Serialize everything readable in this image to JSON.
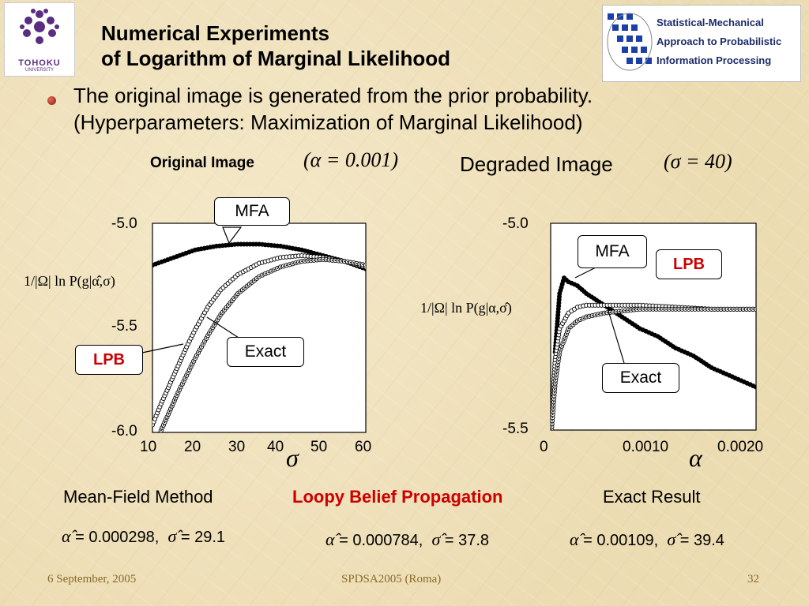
{
  "logos": {
    "left_text": "TOHOKU",
    "left_subtext": "UNIVERSITY",
    "right_lines": [
      "Statistical-Mechanical",
      "Approach to Probabilistic",
      "Information Processing"
    ]
  },
  "title": {
    "line1": "Numerical Experiments",
    "line2": "of Logarithm of Marginal Likelihood"
  },
  "bullet": {
    "line1": "The original image is generated from the prior probability.",
    "line2": "(Hyperparameters: Maximization of Marginal Likelihood)"
  },
  "labels": {
    "original": "Original Image",
    "original_math": "(α = 0.001)",
    "degraded": "Degraded Image",
    "degraded_math": "(σ = 40)"
  },
  "colors": {
    "highlight": "#cc0000",
    "curve": "#000000"
  },
  "chart_data": [
    {
      "type": "scatter",
      "x_symbol": "σ",
      "ylabel": "1/|Ω| ln P(g|α̂,σ)",
      "xlim": [
        10,
        60
      ],
      "ylim": [
        -6.0,
        -4.9
      ],
      "x_tick_labels": [
        "10",
        "20",
        "30",
        "40",
        "50",
        "60"
      ],
      "y_tick_labels": [
        "-5.0",
        "-5.5",
        "-6.0"
      ],
      "callouts": {
        "mfa": "MFA",
        "exact": "Exact",
        "lpb": "LPB"
      },
      "series": [
        {
          "name": "MFA",
          "marker": "filled",
          "x": [
            10,
            15,
            20,
            25,
            30,
            35,
            40,
            45,
            50,
            55,
            60
          ],
          "y": [
            -5.12,
            -5.08,
            -5.04,
            -5.02,
            -5.01,
            -5.01,
            -5.02,
            -5.04,
            -5.07,
            -5.1,
            -5.14
          ]
        },
        {
          "name": "LPB",
          "marker": "open",
          "x": [
            10,
            12,
            14,
            16,
            18,
            20,
            23,
            26,
            30,
            35,
            40,
            45,
            50,
            55,
            60
          ],
          "y": [
            -5.96,
            -5.85,
            -5.75,
            -5.65,
            -5.55,
            -5.46,
            -5.34,
            -5.25,
            -5.17,
            -5.11,
            -5.08,
            -5.07,
            -5.08,
            -5.1,
            -5.13
          ]
        },
        {
          "name": "Exact",
          "marker": "dotted",
          "x": [
            10,
            12,
            14,
            16,
            18,
            20,
            23,
            26,
            30,
            35,
            40,
            45,
            50,
            55,
            60
          ],
          "y": [
            -6.1,
            -5.99,
            -5.89,
            -5.79,
            -5.7,
            -5.61,
            -5.49,
            -5.38,
            -5.27,
            -5.18,
            -5.13,
            -5.1,
            -5.09,
            -5.1,
            -5.12
          ]
        }
      ]
    },
    {
      "type": "scatter",
      "x_symbol": "α",
      "ylabel": "1/|Ω| ln P(g|α,σ̂)",
      "xlim": [
        0,
        0.0023
      ],
      "ylim": [
        -5.5,
        -4.97
      ],
      "x_tick_labels": [
        "0",
        "0.0010",
        "0.0020"
      ],
      "y_tick_labels": [
        "-5.0",
        "-5.5"
      ],
      "callouts": {
        "mfa": "MFA",
        "exact": "Exact",
        "lpb": "LPB"
      },
      "series": [
        {
          "name": "MFA",
          "marker": "filled",
          "x": [
            5e-05,
            0.0001,
            0.00015,
            0.0002,
            0.0003,
            0.0004,
            0.0006,
            0.0008,
            0.001,
            0.0012,
            0.0014,
            0.0016,
            0.0018,
            0.002,
            0.0022,
            0.0023
          ],
          "y": [
            -5.3,
            -5.15,
            -5.11,
            -5.12,
            -5.13,
            -5.15,
            -5.18,
            -5.21,
            -5.24,
            -5.26,
            -5.29,
            -5.31,
            -5.34,
            -5.36,
            -5.38,
            -5.39
          ]
        },
        {
          "name": "LPB",
          "marker": "open",
          "x": [
            1e-05,
            5e-05,
            0.0001,
            0.0002,
            0.0003,
            0.0004,
            0.0006,
            0.0008,
            0.001,
            0.0014,
            0.0018,
            0.0023
          ],
          "y": [
            -5.48,
            -5.32,
            -5.24,
            -5.2,
            -5.185,
            -5.18,
            -5.18,
            -5.18,
            -5.18,
            -5.185,
            -5.19,
            -5.19
          ]
        },
        {
          "name": "Exact",
          "marker": "dotted",
          "x": [
            1e-05,
            5e-05,
            0.0001,
            0.0002,
            0.0003,
            0.0004,
            0.0006,
            0.0008,
            0.001,
            0.0014,
            0.0018,
            0.0023
          ],
          "y": [
            -5.5,
            -5.38,
            -5.3,
            -5.24,
            -5.22,
            -5.21,
            -5.2,
            -5.195,
            -5.19,
            -5.19,
            -5.19,
            -5.19
          ]
        }
      ]
    }
  ],
  "methods": [
    {
      "name": "Mean-Field Method",
      "alpha": "0.000298",
      "sigma": "29.1",
      "highlight": false
    },
    {
      "name": "Loopy Belief Propagation",
      "alpha": "0.000784",
      "sigma": "37.8",
      "highlight": true
    },
    {
      "name": "Exact Result",
      "alpha": "0.00109",
      "sigma": "39.4",
      "highlight": false
    }
  ],
  "footer": {
    "date": "6 September, 2005",
    "venue": "SPDSA2005 (Roma)",
    "page": "32"
  }
}
